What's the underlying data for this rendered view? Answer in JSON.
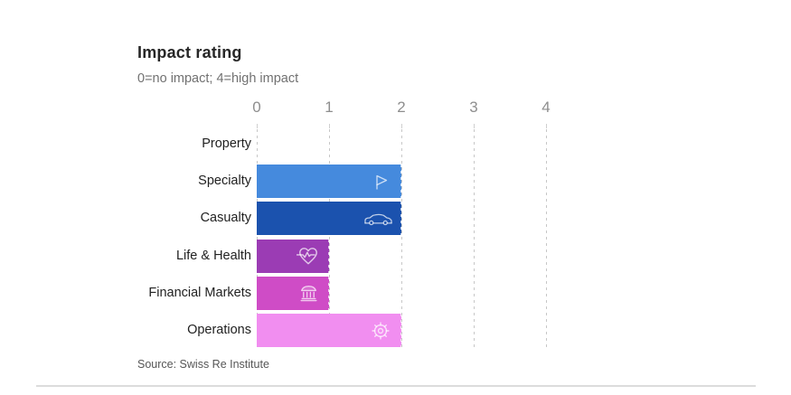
{
  "theme": {
    "grid": "#c7c7c7",
    "divider": "#dcdcdc",
    "title": "#262626",
    "subtitle": "#717171",
    "tick": "#8e8e8e",
    "label": "#212121",
    "source": "#565656",
    "bg": "#ffffff"
  },
  "chart_data": {
    "type": "bar",
    "orientation": "horizontal",
    "title": "Impact rating",
    "subtitle": "0=no impact; 4=high impact",
    "source": "Source: Swiss Re Institute",
    "categories": [
      "Property",
      "Specialty",
      "Casualty",
      "Life & Health",
      "Financial Markets",
      "Operations"
    ],
    "values": [
      0,
      2,
      2,
      1,
      1,
      2
    ],
    "bar_colors": [
      null,
      "#458add",
      "#1b52ae",
      "#9b3cb4",
      "#cf4cc6",
      "#f18ef0"
    ],
    "icons": [
      null,
      "flag-icon",
      "car-icon",
      "heart-pulse-icon",
      "bank-icon",
      "gear-icon"
    ],
    "xlim": [
      0,
      4
    ],
    "xticks": [
      0,
      1,
      2,
      3,
      4
    ],
    "grid": "dashed-vertical",
    "legend": "none"
  }
}
